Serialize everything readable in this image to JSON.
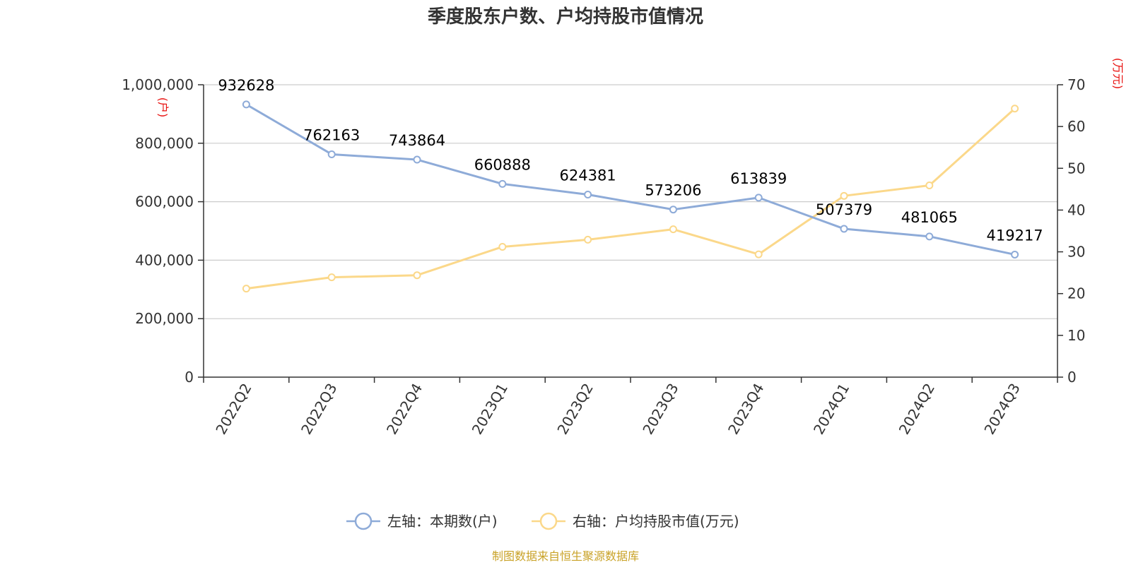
{
  "chart_data": {
    "type": "line",
    "title": "季度股东户数、户均持股市值情况",
    "categories": [
      "2022Q2",
      "2022Q3",
      "2022Q4",
      "2023Q1",
      "2023Q2",
      "2023Q3",
      "2023Q4",
      "2024Q1",
      "2024Q2",
      "2024Q3"
    ],
    "left_axis": {
      "unit": "(户)",
      "ylim": [
        0,
        1000000
      ],
      "ticks": [
        0,
        200000,
        400000,
        600000,
        800000,
        1000000
      ],
      "tick_labels": [
        "0",
        "200,000",
        "400,000",
        "600,000",
        "800,000",
        "1,000,000"
      ]
    },
    "right_axis": {
      "unit": "(万元)",
      "ylim": [
        0,
        70
      ],
      "ticks": [
        0,
        10,
        20,
        30,
        40,
        50,
        60,
        70
      ],
      "tick_labels": [
        "0",
        "10",
        "20",
        "30",
        "40",
        "50",
        "60",
        "70"
      ]
    },
    "series": [
      {
        "name": "左轴：本期数(户)",
        "axis": "left",
        "color": "#8eabd8",
        "values": [
          932628,
          762163,
          743864,
          660888,
          624381,
          573206,
          613839,
          507379,
          481065,
          419217
        ],
        "labels": [
          "932628",
          "762163",
          "743864",
          "660888",
          "624381",
          "573206",
          "613839",
          "507379",
          "481065",
          "419217"
        ]
      },
      {
        "name": "右轴：户均持股市值(万元)",
        "axis": "right",
        "color": "#fbd88a",
        "values": [
          21.2,
          23.9,
          24.4,
          31.2,
          32.9,
          35.4,
          29.4,
          43.4,
          45.9,
          64.3
        ]
      }
    ],
    "grid": true,
    "legend_position": "bottom-center"
  },
  "source_note": "制图数据来自恒生聚源数据库"
}
